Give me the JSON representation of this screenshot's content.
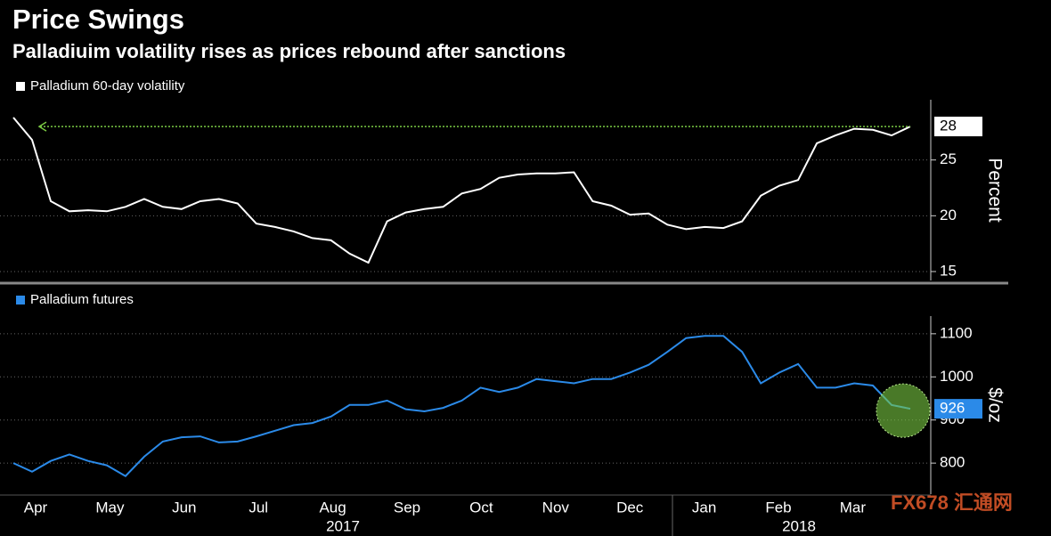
{
  "chart_data": [
    {
      "type": "line",
      "title": "Price Swings",
      "subtitle": "Palladiuim volatility rises as prices rebound after sanctions",
      "axis_label": "Percent",
      "ylim": [
        14.2,
        30.4
      ],
      "yticks": [
        15,
        20,
        25
      ],
      "grid": true,
      "series": [
        {
          "name": "Palladium 60-day volatility",
          "color": "#ffffff",
          "values": [
            28.8,
            26.8,
            21.3,
            20.4,
            20.5,
            20.4,
            20.8,
            21.5,
            20.8,
            20.6,
            21.3,
            21.5,
            21.1,
            19.3,
            19.0,
            18.6,
            18.0,
            17.8,
            16.6,
            15.8,
            19.5,
            20.3,
            20.6,
            20.8,
            22.0,
            22.4,
            23.4,
            23.7,
            23.8,
            23.8,
            23.9,
            21.3,
            20.9,
            20.1,
            20.2,
            19.2,
            18.8,
            19.0,
            18.9,
            19.5,
            21.8,
            22.7,
            23.2,
            26.5,
            27.2,
            27.8,
            27.7,
            27.2,
            28
          ]
        }
      ]
    },
    {
      "type": "line",
      "axis_label": "$/oz",
      "ylim": [
        728,
        1141
      ],
      "yticks": [
        800,
        900,
        1000,
        1100
      ],
      "grid": true,
      "xlabels": [
        "Apr",
        "May",
        "Jun",
        "Jul",
        "Aug",
        "Sep",
        "Oct",
        "Nov",
        "Dec",
        "Jan",
        "Feb",
        "Mar"
      ],
      "years": [
        "2017",
        "2018"
      ],
      "watermark": "FX678 汇通网",
      "series": [
        {
          "name": "Palladium futures",
          "color": "#2b8ae8",
          "values": [
            800,
            780,
            805,
            820,
            805,
            795,
            770,
            815,
            850,
            860,
            862,
            848,
            850,
            862,
            875,
            888,
            893,
            908,
            935,
            935,
            945,
            925,
            920,
            928,
            945,
            975,
            965,
            975,
            995,
            990,
            985,
            995,
            995,
            1010,
            1028,
            1058,
            1090,
            1095,
            1095,
            1058,
            985,
            1010,
            1030,
            975,
            975,
            985,
            980,
            935,
            926
          ]
        }
      ]
    }
  ]
}
